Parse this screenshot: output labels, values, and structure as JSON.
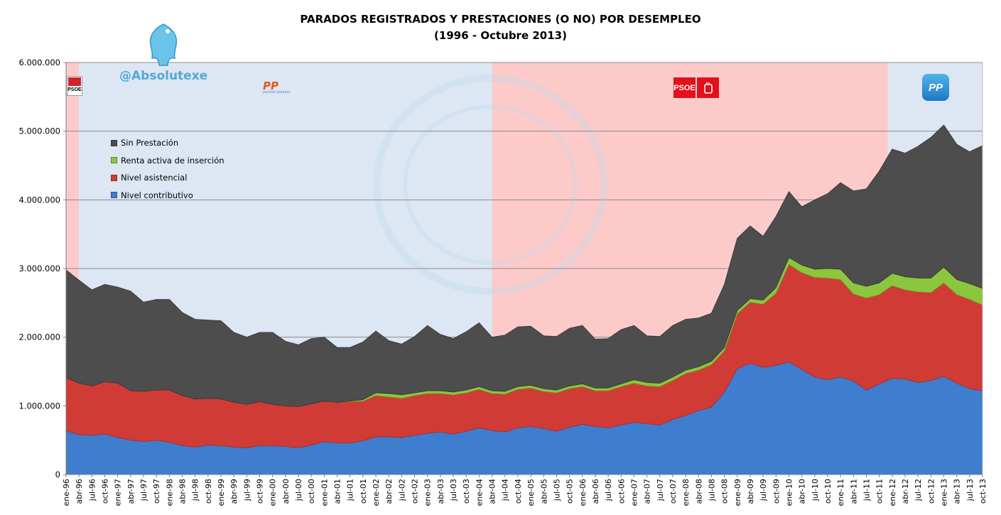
{
  "title": "PARADOS REGISTRADOS Y PRESTACIONES (O NO) POR DESEMPLEO",
  "subtitle": "(1996 - Octubre 2013)",
  "watermark_handle": "@Absolutexe",
  "parties": {
    "psoe_1996": "PSOE",
    "pp_1996": "PP",
    "pp_1996_sub": "partido popular",
    "psoe_2004": "PSOE",
    "pp_2011": "PP"
  },
  "colors": {
    "government_psoe": "#fdcaca",
    "government_pp": "#dde6f3",
    "sin_prestacion": "#4d4d4d",
    "renta_activa": "#8cc63f",
    "nivel_asistencial": "#d13b35",
    "nivel_contributivo": "#3f7dcf"
  },
  "chart_data": {
    "type": "area",
    "stacked": true,
    "title": "PARADOS REGISTRADOS Y PRESTACIONES (O NO) POR DESEMPLEO",
    "subtitle": "(1996 - Octubre 2013)",
    "ylim": [
      0,
      6000000
    ],
    "yticks": [
      "0",
      "1.000.000",
      "2.000.000",
      "3.000.000",
      "4.000.000",
      "5.000.000",
      "6.000.000"
    ],
    "x_tick_labels": [
      "ene-96",
      "abr-96",
      "jul-96",
      "oct-96",
      "ene-97",
      "abr-97",
      "jul-97",
      "oct-97",
      "ene-98",
      "abr-98",
      "jul-98",
      "oct-98",
      "ene-99",
      "abr-99",
      "jul-99",
      "oct-99",
      "ene-00",
      "abr-00",
      "jul-00",
      "oct-00",
      "ene-01",
      "abr-01",
      "jul-01",
      "oct-01",
      "ene-02",
      "abr-02",
      "jul-02",
      "oct-02",
      "ene-03",
      "abr-03",
      "jul-03",
      "oct-03",
      "ene-04",
      "abr-04",
      "jul-04",
      "oct-04",
      "ene-05",
      "abr-05",
      "jul-05",
      "oct-05",
      "ene-06",
      "abr-06",
      "jul-06",
      "oct-06",
      "ene-07",
      "abr-07",
      "jul-07",
      "oct-07",
      "ene-08",
      "abr-08",
      "jul-08",
      "oct-08",
      "ene-09",
      "abr-09",
      "jul-09",
      "oct-09",
      "ene-10",
      "abr-10",
      "jul-10",
      "oct-10",
      "ene-11",
      "abr-11",
      "jul-11",
      "oct-11",
      "ene-12",
      "abr-12",
      "jul-12",
      "oct-12",
      "ene-13",
      "abr-13",
      "jul-13",
      "oct-13"
    ],
    "grid": true,
    "legend_position": "upper-left",
    "government_periods": [
      {
        "party": "PSOE",
        "from": "ene-96",
        "to": "abr-96"
      },
      {
        "party": "PP",
        "from": "abr-96",
        "to": "abr-04"
      },
      {
        "party": "PSOE",
        "from": "abr-04",
        "to": "dic-11"
      },
      {
        "party": "PP",
        "from": "dic-11",
        "to": "oct-13"
      }
    ],
    "series": [
      {
        "name": "Nivel contributivo",
        "values": [
          640000,
          580000,
          570000,
          590000,
          540000,
          500000,
          480000,
          500000,
          470000,
          420000,
          400000,
          430000,
          420000,
          400000,
          390000,
          420000,
          420000,
          410000,
          390000,
          430000,
          480000,
          460000,
          460000,
          490000,
          550000,
          550000,
          540000,
          570000,
          600000,
          620000,
          590000,
          630000,
          680000,
          640000,
          620000,
          680000,
          700000,
          670000,
          630000,
          690000,
          730000,
          700000,
          680000,
          720000,
          760000,
          740000,
          720000,
          800000,
          860000,
          930000,
          980000,
          1200000,
          1540000,
          1620000,
          1560000,
          1590000,
          1640000,
          1530000,
          1420000,
          1380000,
          1420000,
          1360000,
          1230000,
          1320000,
          1400000,
          1390000,
          1340000,
          1370000,
          1430000,
          1330000,
          1250000,
          1220000
        ]
      },
      {
        "name": "Nivel asistencial",
        "values": [
          770000,
          750000,
          720000,
          760000,
          790000,
          720000,
          730000,
          730000,
          760000,
          730000,
          700000,
          680000,
          680000,
          650000,
          630000,
          640000,
          600000,
          590000,
          600000,
          600000,
          590000,
          590000,
          600000,
          580000,
          600000,
          580000,
          570000,
          580000,
          580000,
          560000,
          570000,
          560000,
          560000,
          540000,
          550000,
          560000,
          560000,
          540000,
          560000,
          560000,
          550000,
          520000,
          540000,
          560000,
          570000,
          550000,
          560000,
          570000,
          610000,
          590000,
          620000,
          600000,
          800000,
          890000,
          920000,
          1050000,
          1420000,
          1410000,
          1450000,
          1480000,
          1420000,
          1270000,
          1340000,
          1300000,
          1350000,
          1300000,
          1320000,
          1280000,
          1360000,
          1290000,
          1300000,
          1250000
        ]
      },
      {
        "name": "Renta activa de inserción",
        "values": [
          0,
          0,
          0,
          0,
          0,
          0,
          0,
          0,
          0,
          0,
          0,
          0,
          0,
          0,
          0,
          0,
          0,
          0,
          0,
          0,
          0,
          0,
          10000,
          20000,
          40000,
          50000,
          50000,
          40000,
          40000,
          40000,
          40000,
          40000,
          40000,
          40000,
          40000,
          40000,
          40000,
          40000,
          40000,
          40000,
          40000,
          40000,
          40000,
          40000,
          50000,
          50000,
          50000,
          50000,
          50000,
          50000,
          50000,
          50000,
          50000,
          50000,
          60000,
          80000,
          100000,
          110000,
          120000,
          140000,
          150000,
          160000,
          170000,
          170000,
          180000,
          190000,
          200000,
          210000,
          230000,
          220000,
          230000,
          240000
        ]
      },
      {
        "name": "Sin Prestación",
        "values": [
          1570000,
          1500000,
          1400000,
          1420000,
          1400000,
          1450000,
          1300000,
          1320000,
          1320000,
          1210000,
          1160000,
          1140000,
          1140000,
          1020000,
          980000,
          1010000,
          1050000,
          940000,
          900000,
          950000,
          930000,
          800000,
          780000,
          840000,
          900000,
          770000,
          740000,
          820000,
          950000,
          820000,
          780000,
          850000,
          930000,
          780000,
          820000,
          870000,
          860000,
          770000,
          780000,
          840000,
          850000,
          710000,
          720000,
          790000,
          790000,
          680000,
          680000,
          750000,
          740000,
          710000,
          700000,
          920000,
          1050000,
          1060000,
          930000,
          1040000,
          960000,
          850000,
          1010000,
          1090000,
          1260000,
          1340000,
          1420000,
          1630000,
          1810000,
          1800000,
          1920000,
          2050000,
          2070000,
          1970000,
          1920000,
          2080000
        ]
      }
    ]
  }
}
